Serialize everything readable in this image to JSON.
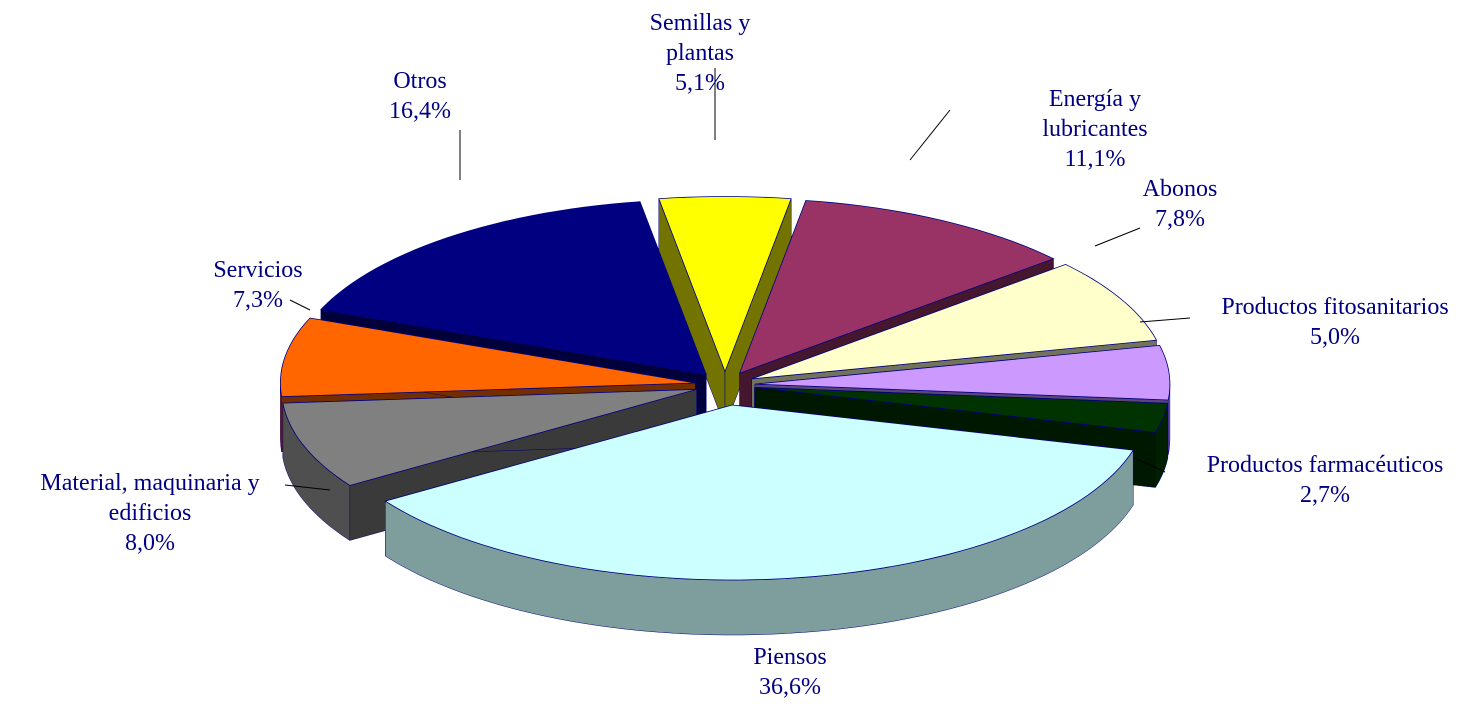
{
  "chart_data": {
    "type": "pie",
    "categories": [
      "Semillas y plantas",
      "Energía y lubricantes",
      "Abonos",
      "Productos fitosanitarios",
      "Productos farmacéuticos",
      "Piensos",
      "Material, maquinaria y edificios",
      "Servicios",
      "Otros"
    ],
    "values": [
      5.1,
      11.1,
      7.8,
      5.0,
      2.7,
      36.6,
      8.0,
      7.3,
      16.4
    ],
    "value_labels": [
      "5,1%",
      "11,1%",
      "7,8%",
      "5,0%",
      "2,7%",
      "36,6%",
      "8,0%",
      "7,3%",
      "16,4%"
    ],
    "colors": [
      "#ffff00",
      "#993366",
      "#ffffcc",
      "#cc99ff",
      "#003300",
      "#ccffff",
      "#808080",
      "#ff6600",
      "#000080"
    ]
  }
}
